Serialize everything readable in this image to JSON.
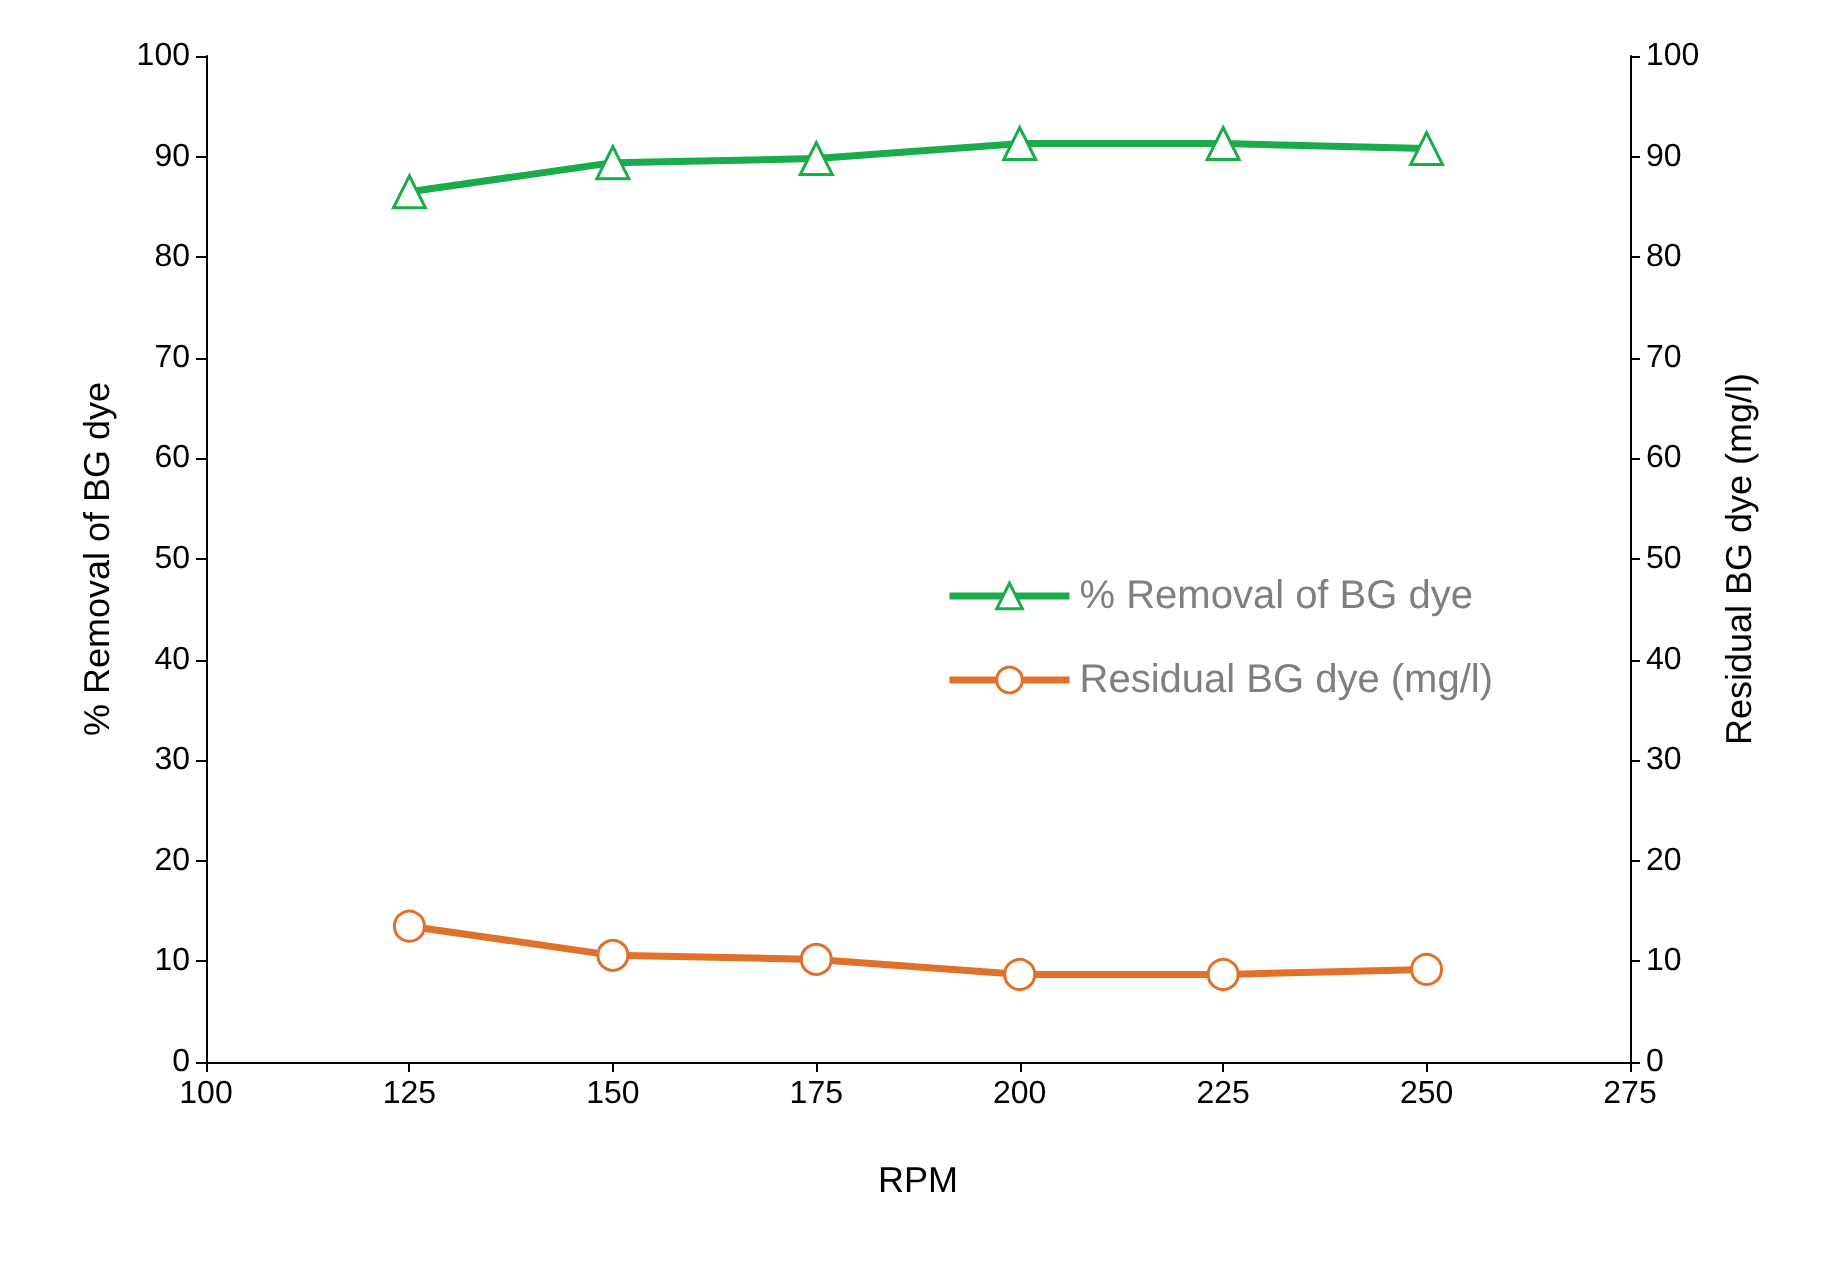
{
  "chart_data": {
    "type": "line",
    "xlabel": "RPM",
    "ylabel": "% Removal of BG dye",
    "y2label": "Residual BG dye (mg/l)",
    "x": [
      125,
      150,
      175,
      200,
      225,
      250
    ],
    "series": [
      {
        "name": "% Removal of BG dye",
        "color": "#1aab4b",
        "marker": "triangle",
        "values": [
          86.5,
          89.4,
          89.8,
          91.3,
          91.3,
          90.8
        ]
      },
      {
        "name": "Residual BG dye (mg/l)",
        "color": "#e0702a",
        "marker": "circle",
        "axis": "y2",
        "values": [
          13.5,
          10.6,
          10.2,
          8.7,
          8.7,
          9.2
        ]
      }
    ],
    "xlim": [
      100,
      275
    ],
    "xticks": [
      100,
      125,
      150,
      175,
      200,
      225,
      250,
      275
    ],
    "ylim": [
      0,
      100
    ],
    "yticks": [
      0,
      10,
      20,
      30,
      40,
      50,
      60,
      70,
      80,
      90,
      100
    ],
    "y2lim": [
      0,
      100
    ],
    "y2ticks": [
      0,
      10,
      20,
      30,
      40,
      50,
      60,
      70,
      80,
      90,
      100
    ],
    "grid": false,
    "legend": "right",
    "line_style": "solid"
  }
}
